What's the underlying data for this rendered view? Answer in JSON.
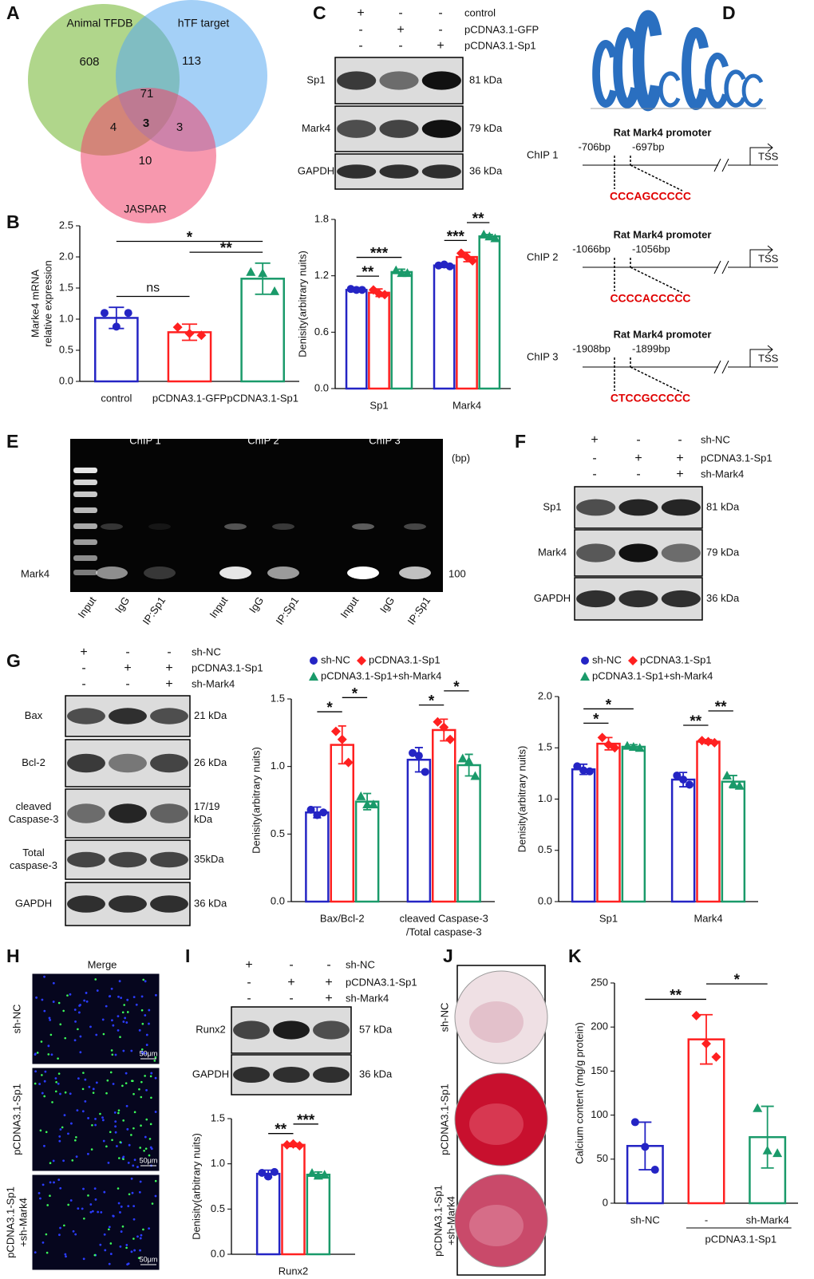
{
  "panel_labels": [
    "A",
    "B",
    "C",
    "D",
    "E",
    "F",
    "G",
    "H",
    "I",
    "J",
    "K"
  ],
  "venn": {
    "sets": [
      "Animal TFDB",
      "hTF target",
      "JASPAR"
    ],
    "counts": [
      608,
      113,
      10,
      71,
      4,
      3,
      3
    ]
  },
  "blots": [
    {
      "conditions": [
        {
          "label": "control",
          "signs": [
            "+",
            "-",
            "-"
          ]
        },
        {
          "label": "pCDNA3.1-GFP",
          "signs": [
            "-",
            "+",
            "-"
          ]
        },
        {
          "label": "pCDNA3.1-Sp1",
          "signs": [
            "-",
            "-",
            "+"
          ]
        }
      ],
      "bands": [
        {
          "name": [
            "Sp1"
          ],
          "size": [
            "81 kDa"
          ]
        },
        {
          "name": [
            "Mark4"
          ],
          "size": [
            "79 kDa"
          ]
        },
        {
          "name": [
            "GAPDH"
          ],
          "size": [
            "36 kDa"
          ]
        }
      ]
    },
    {
      "conditions": [
        {
          "label": "sh-NC",
          "signs": [
            "+",
            "-",
            "-"
          ]
        },
        {
          "label": "pCDNA3.1-Sp1",
          "signs": [
            "-",
            "+",
            "+"
          ]
        },
        {
          "label": "sh-Mark4",
          "signs": [
            "-",
            "-",
            "+"
          ]
        }
      ],
      "bands": [
        {
          "name": [
            "Sp1"
          ],
          "size": [
            "81 kDa"
          ]
        },
        {
          "name": [
            "Mark4"
          ],
          "size": [
            "79 kDa"
          ]
        },
        {
          "name": [
            "GAPDH"
          ],
          "size": [
            "36 kDa"
          ]
        }
      ]
    },
    {
      "conditions": [
        {
          "label": "sh-NC",
          "signs": [
            "+",
            "-",
            "-"
          ]
        },
        {
          "label": "pCDNA3.1-Sp1",
          "signs": [
            "-",
            "+",
            "+"
          ]
        },
        {
          "label": "sh-Mark4",
          "signs": [
            "-",
            "-",
            "+"
          ]
        }
      ],
      "bands": [
        {
          "name": [
            "Bax"
          ],
          "size": [
            "21 kDa"
          ]
        },
        {
          "name": [
            "Bcl-2"
          ],
          "size": [
            "26 kDa"
          ]
        },
        {
          "name": [
            "cleaved",
            "Caspase-3"
          ],
          "size": [
            "17/19",
            "kDa"
          ]
        },
        {
          "name": [
            "Total",
            "caspase-3"
          ],
          "size": [
            "35kDa"
          ]
        },
        {
          "name": [
            "GAPDH"
          ],
          "size": [
            "36 kDa"
          ]
        }
      ]
    },
    {
      "conditions": [
        {
          "label": "sh-NC",
          "signs": [
            "+",
            "-",
            "-"
          ]
        },
        {
          "label": "pCDNA3.1-Sp1",
          "signs": [
            "-",
            "+",
            "+"
          ]
        },
        {
          "label": "sh-Mark4",
          "signs": [
            "-",
            "-",
            "+"
          ]
        }
      ],
      "bands": [
        {
          "name": [
            "Runx2"
          ],
          "size": [
            "57 kDa"
          ]
        },
        {
          "name": [
            "GAPDH"
          ],
          "size": [
            "36 kDa"
          ]
        }
      ]
    }
  ],
  "chip": {
    "sites": [
      {
        "name": "ChIP 1",
        "title": "Rat  Mark4 promoter",
        "left": "-706bp",
        "right": "-697bp",
        "sequence": "CCCAGCCCCC",
        "tss": "TSS"
      },
      {
        "name": "ChIP 2",
        "title": "Rat  Mark4 promoter",
        "left": "-1066bp",
        "right": "-1056bp",
        "sequence": "CCCCACCCCC",
        "tss": "TSS"
      },
      {
        "name": "ChIP 3",
        "title": "Rat  Mark4  promoter",
        "left": "-1908bp",
        "right": "-1899bp",
        "sequence": "CTCCGCCCCC",
        "tss": "TSS"
      }
    ]
  },
  "gel": {
    "groups": [
      "ChIP 1",
      "ChIP 2",
      "ChIP 3"
    ],
    "unit": "(bp)",
    "target": "Mark4",
    "size": "100",
    "lanes": [
      "Input",
      "IgG",
      "IP:Sp1",
      "Input",
      "IgG",
      "IP:Sp1",
      "Input",
      "IgG",
      "IP:Sp1"
    ]
  },
  "fluorescence": {
    "title": "Merge",
    "rows": [
      [
        "sh-NC"
      ],
      [
        "pCDNA3.1-Sp1"
      ],
      [
        "pCDNA3.1-Sp1",
        "+sh-Mark4"
      ]
    ],
    "scale": "50μm"
  },
  "staining": {
    "rows": [
      [
        "sh-NC"
      ],
      [
        "pCDNA3.1-Sp1"
      ],
      [
        "pCDNA3.1-Sp1",
        "+sh-Mark4"
      ]
    ]
  },
  "chart_data": [
    {
      "type": "bar",
      "ylabel": [
        "Marke4 mRNA",
        "relative expression"
      ],
      "categories": [
        "control",
        "pCDNA3.1-GFP",
        "pCDNA3.1-Sp1"
      ],
      "values": [
        1.02,
        0.79,
        1.65
      ],
      "errors": [
        0.17,
        0.13,
        0.25
      ],
      "points": [
        [
          1.1,
          0.88,
          1.1
        ],
        [
          0.87,
          0.77,
          0.74
        ],
        [
          1.76,
          1.74,
          1.45
        ]
      ],
      "colors": [
        "#2424c4",
        "#ff2020",
        "#1a9a6a"
      ],
      "markers": [
        "circle",
        "diamond",
        "triangle"
      ],
      "ylim": [
        0,
        2.5
      ],
      "yticks": [
        {
          "value": 0,
          "label": "0.0"
        },
        0.5,
        {
          "value": 1,
          "label": "1.0"
        },
        1.5,
        {
          "value": 2,
          "label": "2.0"
        },
        2.5
      ],
      "annotations": [
        {
          "text": "ns",
          "bars": [
            0,
            1
          ]
        },
        {
          "text": "**",
          "bars": [
            1,
            2
          ]
        },
        {
          "text": "*",
          "bars": [
            0,
            2
          ]
        }
      ]
    },
    {
      "type": "grouped_bar",
      "ylabel": [
        "Denisity(arbitrary nuits)"
      ],
      "categories": [
        "Sp1",
        "Mark4"
      ],
      "series": [
        {
          "color": "#2424c4",
          "marker": "circle",
          "values": [
            1.05,
            1.31
          ],
          "errors": [
            0.02,
            0.02
          ],
          "points": [
            [
              1.06,
              1.05,
              1.05
            ],
            [
              1.31,
              1.32,
              1.3
            ]
          ]
        },
        {
          "color": "#ff2020",
          "marker": "diamond",
          "values": [
            1.02,
            1.4
          ],
          "errors": [
            0.04,
            0.05
          ],
          "points": [
            [
              1.05,
              1.01,
              1.0
            ],
            [
              1.44,
              1.4,
              1.36
            ]
          ]
        },
        {
          "color": "#1a9a6a",
          "marker": "triangle",
          "values": [
            1.24,
            1.62
          ],
          "errors": [
            0.03,
            0.02
          ],
          "points": [
            [
              1.26,
              1.23,
              1.23
            ],
            [
              1.64,
              1.62,
              1.6
            ]
          ]
        }
      ],
      "ylim": [
        0,
        1.8
      ],
      "yticks": [
        {
          "value": 0,
          "label": "0.0"
        },
        0.6,
        1.2,
        1.8
      ],
      "annotations": [
        {
          "text": "**",
          "bars": [
            [
              0,
              0
            ],
            [
              0,
              1
            ]
          ]
        },
        {
          "text": "***",
          "bars": [
            [
              0,
              0
            ],
            [
              0,
              2
            ]
          ]
        },
        {
          "text": "***",
          "bars": [
            [
              1,
              0
            ],
            [
              1,
              1
            ]
          ]
        },
        {
          "text": "**",
          "bars": [
            [
              1,
              1
            ],
            [
              1,
              2
            ]
          ]
        }
      ]
    },
    {
      "type": "grouped_bar",
      "legend": true,
      "ylabel": [
        "Denisity(arbitrary nuits)"
      ],
      "categories": [
        [
          "Bax/Bcl-2"
        ],
        [
          "cleaved Caspase-3",
          "/Total caspase-3"
        ]
      ],
      "series": [
        {
          "name": "sh-NC",
          "color": "#2424c4",
          "marker": "circle",
          "values": [
            0.66,
            1.05
          ],
          "errors": [
            0.04,
            0.09
          ],
          "points": [
            [
              0.68,
              0.64,
              0.66
            ],
            [
              1.1,
              1.08,
              0.96
            ]
          ]
        },
        {
          "name": "pCDNA3.1-Sp1",
          "color": "#ff2020",
          "marker": "diamond",
          "values": [
            1.16,
            1.27
          ],
          "errors": [
            0.14,
            0.08
          ],
          "points": [
            [
              1.26,
              1.2,
              1.03
            ],
            [
              1.33,
              1.29,
              1.2
            ]
          ]
        },
        {
          "name": "pCDNA3.1-Sp1+sh-Mark4",
          "color": "#1a9a6a",
          "marker": "triangle",
          "values": [
            0.74,
            1.01
          ],
          "errors": [
            0.06,
            0.08
          ],
          "points": [
            [
              0.78,
              0.72,
              0.72
            ],
            [
              1.06,
              1.04,
              0.93
            ]
          ]
        }
      ],
      "ylim": [
        0,
        1.5
      ],
      "yticks": [
        {
          "value": 0,
          "label": "0.0"
        },
        0.5,
        {
          "value": 1,
          "label": "1.0"
        },
        1.5
      ],
      "annotations": [
        {
          "text": "*",
          "bars": [
            [
              0,
              0
            ],
            [
              0,
              1
            ]
          ]
        },
        {
          "text": "*",
          "bars": [
            [
              0,
              1
            ],
            [
              0,
              2
            ]
          ]
        },
        {
          "text": "*",
          "bars": [
            [
              1,
              0
            ],
            [
              1,
              1
            ]
          ]
        },
        {
          "text": "*",
          "bars": [
            [
              1,
              1
            ],
            [
              1,
              2
            ]
          ]
        }
      ]
    },
    {
      "type": "grouped_bar",
      "legend": true,
      "ylabel": [
        "Denisity(arbitrary nuits)"
      ],
      "categories": [
        "Sp1",
        "Mark4"
      ],
      "series": [
        {
          "name": "sh-NC",
          "color": "#2424c4",
          "marker": "circle",
          "values": [
            1.29,
            1.19
          ],
          "errors": [
            0.05,
            0.07
          ],
          "points": [
            [
              1.32,
              1.28,
              1.27
            ],
            [
              1.23,
              1.19,
              1.14
            ]
          ]
        },
        {
          "name": "pCDNA3.1-Sp1",
          "color": "#ff2020",
          "marker": "diamond",
          "values": [
            1.54,
            1.56
          ],
          "errors": [
            0.06,
            0.02
          ],
          "points": [
            [
              1.6,
              1.53,
              1.5
            ],
            [
              1.57,
              1.56,
              1.55
            ]
          ]
        },
        {
          "name": "pCDNA3.1-Sp1+sh-Mark4",
          "color": "#1a9a6a",
          "marker": "triangle",
          "values": [
            1.51,
            1.17
          ],
          "errors": [
            0.02,
            0.06
          ],
          "points": [
            [
              1.52,
              1.51,
              1.5
            ],
            [
              1.23,
              1.15,
              1.13
            ]
          ]
        }
      ],
      "ylim": [
        0,
        2
      ],
      "yticks": [
        {
          "value": 0,
          "label": "0.0"
        },
        0.5,
        {
          "value": 1,
          "label": "1.0"
        },
        1.5,
        {
          "value": 2,
          "label": "2.0"
        }
      ],
      "annotations": [
        {
          "text": "*",
          "bars": [
            [
              0,
              0
            ],
            [
              0,
              1
            ]
          ]
        },
        {
          "text": "*",
          "bars": [
            [
              0,
              0
            ],
            [
              0,
              2
            ]
          ]
        },
        {
          "text": "**",
          "bars": [
            [
              1,
              0
            ],
            [
              1,
              1
            ]
          ]
        },
        {
          "text": "**",
          "bars": [
            [
              1,
              1
            ],
            [
              1,
              2
            ]
          ]
        }
      ]
    },
    {
      "type": "grouped_bar",
      "ylabel": [
        "Denisity(arbitrary nuits)"
      ],
      "categories": [
        "Runx2"
      ],
      "series": [
        {
          "color": "#2424c4",
          "marker": "circle",
          "values": [
            0.89
          ],
          "errors": [
            0.04
          ],
          "points": [
            [
              0.9,
              0.86,
              0.91
            ]
          ]
        },
        {
          "color": "#ff2020",
          "marker": "diamond",
          "values": [
            1.21
          ],
          "errors": [
            0.02
          ],
          "points": [
            [
              1.21,
              1.22,
              1.2
            ]
          ]
        },
        {
          "color": "#1a9a6a",
          "marker": "triangle",
          "values": [
            0.88
          ],
          "errors": [
            0.03
          ],
          "points": [
            [
              0.9,
              0.87,
              0.88
            ]
          ]
        }
      ],
      "ylim": [
        0,
        1.5
      ],
      "yticks": [
        {
          "value": 0,
          "label": "0.0"
        },
        0.5,
        {
          "value": 1,
          "label": "1.0"
        },
        1.5
      ],
      "annotations": [
        {
          "text": "**",
          "bars": [
            [
              0,
              0
            ],
            [
              0,
              1
            ]
          ]
        },
        {
          "text": "***",
          "bars": [
            [
              0,
              1
            ],
            [
              0,
              2
            ]
          ]
        }
      ]
    },
    {
      "type": "bar",
      "ylabel": [
        "Calcium content  (mg/g protein)"
      ],
      "categories": [
        "sh-NC",
        "-",
        "sh-Mark4"
      ],
      "group_label": "pCDNA3.1-Sp1",
      "values": [
        65,
        186,
        75
      ],
      "errors": [
        27,
        28,
        35
      ],
      "points": [
        [
          92,
          64,
          38
        ],
        [
          213,
          181,
          166
        ],
        [
          108,
          60,
          57
        ]
      ],
      "colors": [
        "#2424c4",
        "#ff2020",
        "#1a9a6a"
      ],
      "markers": [
        "circle",
        "diamond",
        "triangle"
      ],
      "ylim": [
        0,
        250
      ],
      "yticks": [
        0,
        50,
        100,
        150,
        200,
        250
      ],
      "annotations": [
        {
          "text": "**",
          "bars": [
            0,
            1
          ]
        },
        {
          "text": "*",
          "bars": [
            1,
            2
          ]
        }
      ]
    }
  ]
}
